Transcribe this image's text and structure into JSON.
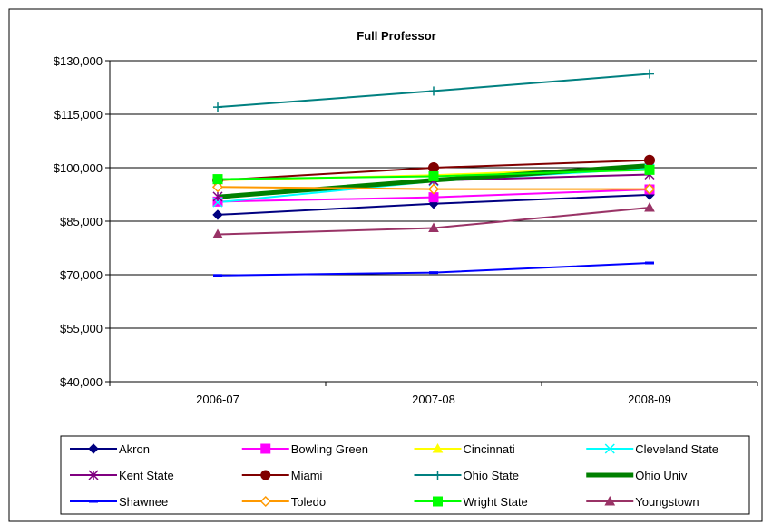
{
  "chart_data": {
    "type": "line",
    "title": "Full Professor",
    "xlabel": "",
    "ylabel": "",
    "categories": [
      "2006-07",
      "2007-08",
      "2008-09"
    ],
    "ylim": [
      40000,
      130000
    ],
    "yticks": [
      40000,
      55000,
      70000,
      85000,
      100000,
      115000,
      130000
    ],
    "ytick_labels": [
      "$40,000",
      "$55,000",
      "$70,000",
      "$85,000",
      "$100,000",
      "$115,000",
      "$130,000"
    ],
    "grid": true,
    "legend_position": "bottom",
    "series": [
      {
        "name": "Akron",
        "values": [
          86800,
          89900,
          92400
        ],
        "color": "#000080",
        "marker": "diamond"
      },
      {
        "name": "Bowling Green",
        "values": [
          90500,
          91700,
          93900
        ],
        "color": "#ff00ff",
        "marker": "square"
      },
      {
        "name": "Cincinnati",
        "values": [
          96500,
          97900,
          100300
        ],
        "color": "#ffff00",
        "marker": "triangle"
      },
      {
        "name": "Cleveland State",
        "values": [
          90300,
          96200,
          99800
        ],
        "color": "#00ffff",
        "marker": "x"
      },
      {
        "name": "Kent State",
        "values": [
          91900,
          96400,
          98100
        ],
        "color": "#800080",
        "marker": "asterisk"
      },
      {
        "name": "Miami",
        "values": [
          96500,
          100000,
          102100
        ],
        "color": "#800000",
        "marker": "circle"
      },
      {
        "name": "Ohio State",
        "values": [
          117000,
          121500,
          126300
        ],
        "color": "#008080",
        "marker": "plus"
      },
      {
        "name": "Ohio Univ",
        "values": [
          91800,
          96500,
          100600
        ],
        "color": "#008000",
        "marker": "none",
        "thick": true
      },
      {
        "name": "Shawnee",
        "values": [
          69800,
          70600,
          73300
        ],
        "color": "#0000ff",
        "marker": "dash"
      },
      {
        "name": "Toledo",
        "values": [
          94600,
          94000,
          94000
        ],
        "color": "#ff9900",
        "marker": "diamond-open"
      },
      {
        "name": "Wright State",
        "values": [
          96800,
          97600,
          99400
        ],
        "color": "#00ff00",
        "marker": "square"
      },
      {
        "name": "Youngstown",
        "values": [
          81300,
          83100,
          88800
        ],
        "color": "#993366",
        "marker": "triangle"
      }
    ]
  }
}
